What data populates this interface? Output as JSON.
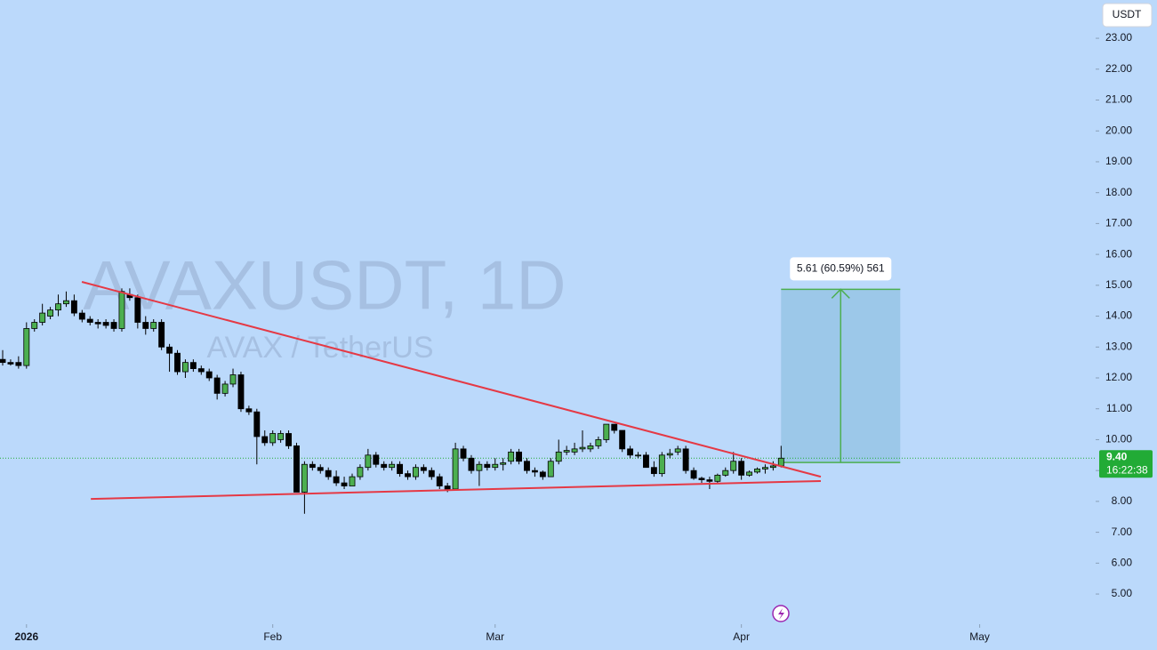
{
  "chart_data": {
    "type": "candlestick",
    "watermark": {
      "title": "AVAXUSDT, 1D",
      "subtitle": "AVAX / TetherUS"
    },
    "currency": "USDT",
    "up_color": "#4caf50",
    "down_color": "#000000",
    "x": [
      0,
      1,
      2,
      3,
      4,
      5,
      6,
      7,
      8,
      9,
      10,
      11,
      12,
      13,
      14,
      15,
      16,
      17,
      18,
      19,
      20,
      21,
      22,
      23,
      24,
      25,
      26,
      27,
      28,
      29,
      30,
      31,
      32,
      33,
      34,
      35,
      36,
      37,
      38,
      39,
      40,
      41,
      42,
      43,
      44,
      45,
      46,
      47,
      48,
      49,
      50,
      51,
      52,
      53,
      54,
      55,
      56,
      57,
      58,
      59,
      60,
      61,
      62,
      63,
      64,
      65,
      66,
      67,
      68,
      69,
      70,
      71,
      72,
      73,
      74,
      75,
      76,
      77,
      78,
      79,
      80,
      81,
      82,
      83,
      84,
      85,
      86,
      87,
      88,
      89,
      90,
      91,
      92,
      93,
      94,
      95,
      96,
      97,
      98
    ],
    "open": [
      12.6,
      12.5,
      12.5,
      12.4,
      13.6,
      13.8,
      14.0,
      14.2,
      14.4,
      14.5,
      14.1,
      13.9,
      13.8,
      13.8,
      13.8,
      13.6,
      14.7,
      14.6,
      13.8,
      13.6,
      13.8,
      13.0,
      12.8,
      12.2,
      12.5,
      12.3,
      12.2,
      12.0,
      11.5,
      11.8,
      12.1,
      11.0,
      10.9,
      10.1,
      9.9,
      10.0,
      10.2,
      9.8,
      8.3,
      9.2,
      9.1,
      9.0,
      8.8,
      8.6,
      8.5,
      8.8,
      9.1,
      9.5,
      9.2,
      9.1,
      9.2,
      8.9,
      8.8,
      9.1,
      9.0,
      8.8,
      8.5,
      8.4,
      9.7,
      9.4,
      9.0,
      9.2,
      9.1,
      9.2,
      9.3,
      9.6,
      9.3,
      9.0,
      8.95,
      8.8,
      9.3,
      9.6,
      9.6,
      9.7,
      9.7,
      9.8,
      10.0,
      10.5,
      10.3,
      9.7,
      9.5,
      9.5,
      9.1,
      8.9,
      9.5,
      9.6,
      9.7,
      9.0,
      8.75,
      8.7,
      8.65,
      8.85,
      9.0,
      9.3,
      8.85,
      8.95,
      9.05,
      9.1,
      9.15
    ],
    "high": [
      12.9,
      12.6,
      12.7,
      13.8,
      13.9,
      14.4,
      14.3,
      14.7,
      14.8,
      14.7,
      14.2,
      14.0,
      13.9,
      13.9,
      13.9,
      14.9,
      14.9,
      14.7,
      14.0,
      13.9,
      13.9,
      13.1,
      12.9,
      12.6,
      12.6,
      12.4,
      12.3,
      12.1,
      11.9,
      12.3,
      12.2,
      11.1,
      11.0,
      10.3,
      10.3,
      10.3,
      10.3,
      9.9,
      9.3,
      9.3,
      9.2,
      9.1,
      9.0,
      8.8,
      8.9,
      9.2,
      9.7,
      9.6,
      9.3,
      9.3,
      9.3,
      9.0,
      9.2,
      9.2,
      9.1,
      8.9,
      8.6,
      9.9,
      9.8,
      9.5,
      9.3,
      9.3,
      9.4,
      9.4,
      9.7,
      9.7,
      9.4,
      9.1,
      9.0,
      9.4,
      10.0,
      9.8,
      9.9,
      10.3,
      9.9,
      10.1,
      10.5,
      10.5,
      10.3,
      9.8,
      9.6,
      9.6,
      9.3,
      9.6,
      9.7,
      9.8,
      9.8,
      9.1,
      8.8,
      8.8,
      8.9,
      9.1,
      9.6,
      9.4,
      9.0,
      9.1,
      9.2,
      9.3,
      9.8
    ],
    "low": [
      12.4,
      12.4,
      12.3,
      12.3,
      13.5,
      13.7,
      13.9,
      14.0,
      14.3,
      14.0,
      13.8,
      13.7,
      13.6,
      13.6,
      13.5,
      13.5,
      14.5,
      13.6,
      13.4,
      13.5,
      12.9,
      12.2,
      12.1,
      12.0,
      12.2,
      12.1,
      11.9,
      11.3,
      11.4,
      11.7,
      10.9,
      10.8,
      9.2,
      9.8,
      9.8,
      9.9,
      9.7,
      8.3,
      7.6,
      9.0,
      8.9,
      8.7,
      8.5,
      8.4,
      8.5,
      8.7,
      9.0,
      9.1,
      9.0,
      9.0,
      8.8,
      8.7,
      8.7,
      8.9,
      8.7,
      8.4,
      8.3,
      8.4,
      9.3,
      8.9,
      8.5,
      9.0,
      9.0,
      9.0,
      9.2,
      9.2,
      8.9,
      8.8,
      8.7,
      8.8,
      9.2,
      9.5,
      9.5,
      9.6,
      9.6,
      9.7,
      9.9,
      10.2,
      9.6,
      9.4,
      9.4,
      9.1,
      8.8,
      8.8,
      9.4,
      9.5,
      8.9,
      8.7,
      8.6,
      8.4,
      8.6,
      8.8,
      8.9,
      8.7,
      8.8,
      8.9,
      8.9,
      9.0,
      9.1
    ],
    "close": [
      12.5,
      12.45,
      12.4,
      13.6,
      13.8,
      14.1,
      14.2,
      14.4,
      14.5,
      14.1,
      13.9,
      13.8,
      13.75,
      13.7,
      13.6,
      14.8,
      14.6,
      13.8,
      13.6,
      13.8,
      13.0,
      12.8,
      12.2,
      12.5,
      12.3,
      12.2,
      12.0,
      11.5,
      11.8,
      12.1,
      11.0,
      10.9,
      10.1,
      9.9,
      10.2,
      10.2,
      9.8,
      8.3,
      9.2,
      9.1,
      9.0,
      8.8,
      8.6,
      8.5,
      8.8,
      9.1,
      9.5,
      9.2,
      9.1,
      9.2,
      8.9,
      8.8,
      9.1,
      9.0,
      8.8,
      8.5,
      8.4,
      9.7,
      9.4,
      9.0,
      9.2,
      9.1,
      9.2,
      9.25,
      9.6,
      9.3,
      9.0,
      8.95,
      8.8,
      9.3,
      9.6,
      9.65,
      9.7,
      9.75,
      9.8,
      10.0,
      10.5,
      10.3,
      9.7,
      9.5,
      9.5,
      9.1,
      8.9,
      9.5,
      9.55,
      9.7,
      9.0,
      8.75,
      8.7,
      8.65,
      8.85,
      9.0,
      9.3,
      8.85,
      8.95,
      9.05,
      9.1,
      9.15,
      9.4
    ],
    "xlim": [
      -0.336,
      137.6
    ],
    "ylim": [
      4.08,
      24.24
    ],
    "xticks": [
      {
        "value": 3,
        "label": "2026"
      },
      {
        "value": 34,
        "label": "Feb"
      },
      {
        "value": 62,
        "label": "Mar"
      },
      {
        "value": 93,
        "label": "Apr"
      },
      {
        "value": 123,
        "label": "May"
      }
    ],
    "yticks": [
      {
        "value": 5,
        "label": "5.00"
      },
      {
        "value": 6,
        "label": "6.00"
      },
      {
        "value": 7,
        "label": "7.00"
      },
      {
        "value": 8,
        "label": "8.00"
      },
      {
        "value": 9,
        "label": "9.00"
      },
      {
        "value": 10,
        "label": "10.00"
      },
      {
        "value": 11,
        "label": "11.00"
      },
      {
        "value": 12,
        "label": "12.00"
      },
      {
        "value": 13,
        "label": "13.00"
      },
      {
        "value": 14,
        "label": "14.00"
      },
      {
        "value": 15,
        "label": "15.00"
      },
      {
        "value": 16,
        "label": "16.00"
      },
      {
        "value": 17,
        "label": "17.00"
      },
      {
        "value": 18,
        "label": "18.00"
      },
      {
        "value": 19,
        "label": "19.00"
      },
      {
        "value": 20,
        "label": "20.00"
      },
      {
        "value": 21,
        "label": "21.00"
      },
      {
        "value": 22,
        "label": "22.00"
      },
      {
        "value": 23,
        "label": "23.00"
      }
    ],
    "trend_lines": [
      {
        "color": "#e53945",
        "x": [
          9.97,
          103
        ],
        "values": [
          15.11,
          8.8
        ]
      },
      {
        "color": "#e53945",
        "x": [
          11.1,
          103
        ],
        "values": [
          8.08,
          8.66
        ]
      }
    ],
    "range": {
      "color": "#4caf50",
      "x": [
        98,
        113
      ],
      "values": [
        9.26,
        14.87
      ],
      "label": "5.61 (60.59%) 561"
    },
    "last_price": {
      "value": 9.4,
      "label": "9.40",
      "countdown": "16:22:38",
      "color": "#22ab36"
    }
  }
}
